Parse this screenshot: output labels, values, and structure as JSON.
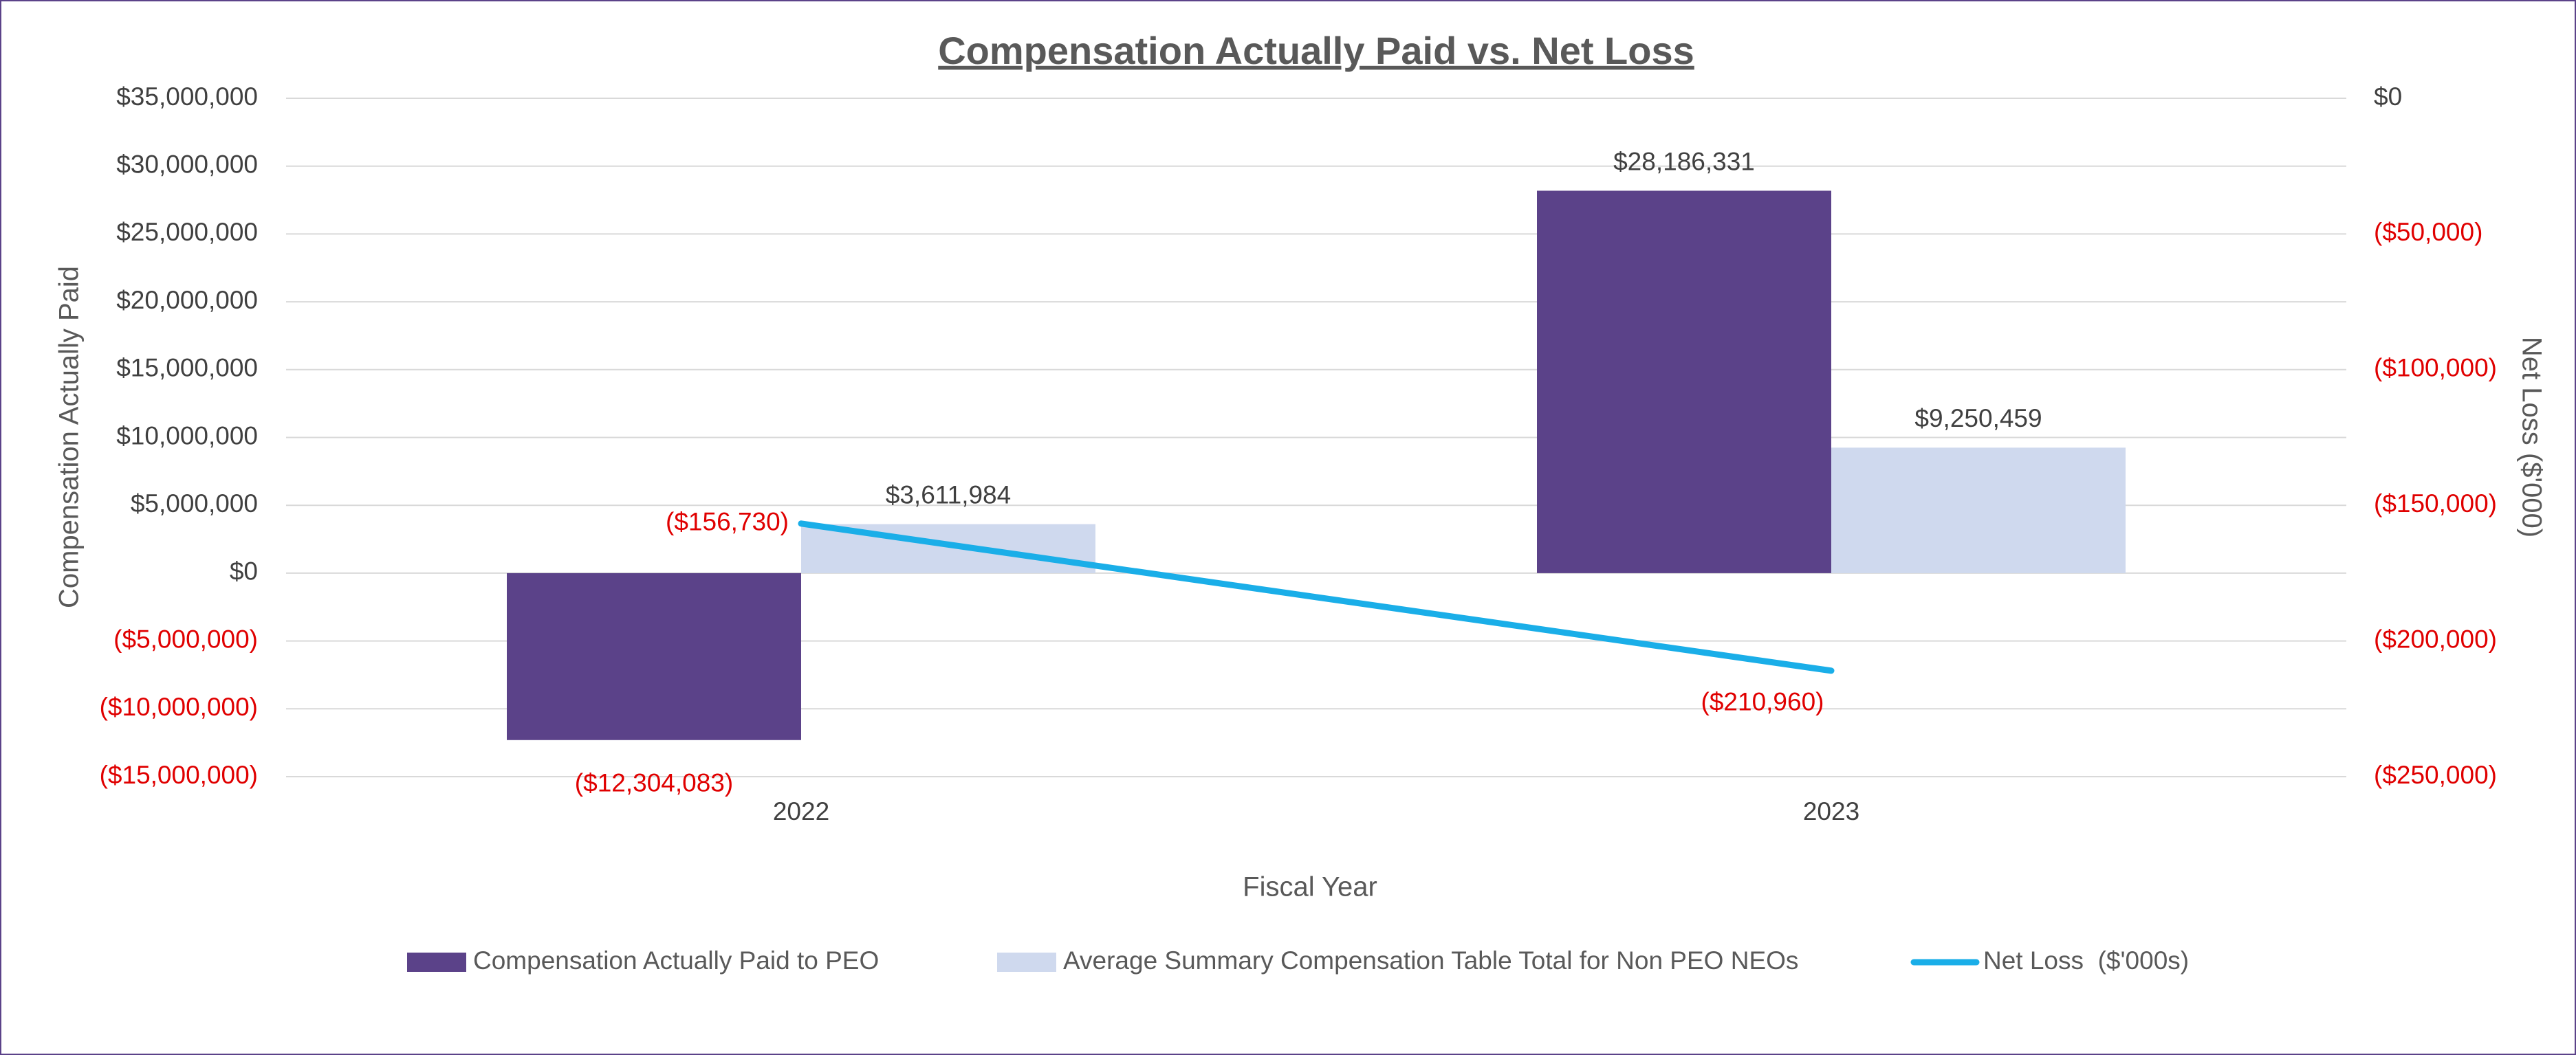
{
  "chart_data": {
    "type": "bar_line",
    "title": "Compensation Actually Paid vs. Net Loss",
    "x_label": "Fiscal Year",
    "y_label": "Compensation Actually Paid",
    "y2_label": "Net Loss ($'000)",
    "categories": [
      "2022",
      "2023"
    ],
    "series": [
      {
        "name": "Compensation Actually Paid to PEO",
        "type": "bar",
        "color": "#5b4289",
        "values": [
          -12304083,
          28186331
        ],
        "value_labels": [
          "($12,304,083)",
          "$28,186,331"
        ]
      },
      {
        "name": "Average Summary Compensation Table Total for Non PEO NEOs",
        "type": "bar",
        "color": "#cfd9ee",
        "values": [
          3611984,
          9250459
        ],
        "value_labels": [
          "$3,611,984",
          "$9,250,459"
        ]
      },
      {
        "name": "Net Loss  ($'000s)",
        "type": "line",
        "axis": "y2",
        "color": "#1aaee8",
        "values": [
          -156730,
          -210960
        ],
        "value_labels": [
          "($156,730)",
          "($210,960)"
        ]
      }
    ],
    "ylim": [
      -15000000,
      35000000
    ],
    "yticks": [
      {
        "value": -15000000,
        "label": "($15,000,000)"
      },
      {
        "value": -10000000,
        "label": "($10,000,000)"
      },
      {
        "value": -5000000,
        "label": "($5,000,000)"
      },
      {
        "value": 0,
        "label": "$0"
      },
      {
        "value": 5000000,
        "label": "$5,000,000"
      },
      {
        "value": 10000000,
        "label": "$10,000,000"
      },
      {
        "value": 15000000,
        "label": "$15,000,000"
      },
      {
        "value": 20000000,
        "label": "$20,000,000"
      },
      {
        "value": 25000000,
        "label": "$25,000,000"
      },
      {
        "value": 30000000,
        "label": "$30,000,000"
      },
      {
        "value": 35000000,
        "label": "$35,000,000"
      }
    ],
    "y2lim": [
      -250000,
      0
    ],
    "y2ticks": [
      {
        "value": -250000,
        "label": "($250,000)"
      },
      {
        "value": -200000,
        "label": "($200,000)"
      },
      {
        "value": -150000,
        "label": "($150,000)"
      },
      {
        "value": -100000,
        "label": "($100,000)"
      },
      {
        "value": -50000,
        "label": "($50,000)"
      },
      {
        "value": 0,
        "label": "$0"
      }
    ],
    "grid": true,
    "legend": "bottom"
  }
}
